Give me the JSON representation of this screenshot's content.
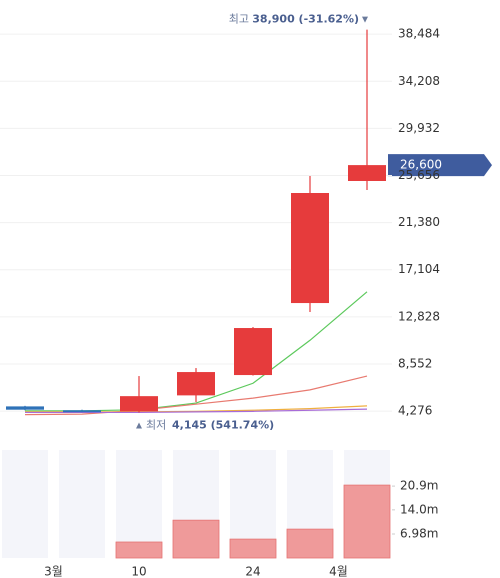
{
  "chart_data": {
    "type": "candlestick",
    "categories": [
      null,
      null,
      "10",
      null,
      "24",
      null,
      null
    ],
    "month_labels": [
      "3월",
      "4월"
    ],
    "open": [
      4700,
      4350,
      4250,
      5700,
      7545,
      14080,
      25158
    ],
    "high": [
      4750,
      4400,
      7454,
      8180,
      11900,
      25611,
      38900
    ],
    "low": [
      4350,
      4180,
      4145,
      5090,
      7500,
      13264,
      24340
    ],
    "close": [
      4400,
      4200,
      5630,
      7817,
      11812,
      24068,
      26600
    ],
    "up_color": "#e63b3c",
    "down_color": "#2f72b8",
    "ylim": [
      1650,
      39770
    ],
    "yticks": [
      {
        "value": 4276,
        "label": "4,276"
      },
      {
        "value": 8552,
        "label": "8,552"
      },
      {
        "value": 12828,
        "label": "12,828"
      },
      {
        "value": 17104,
        "label": "17,104"
      },
      {
        "value": 21380,
        "label": "21,380"
      },
      {
        "value": 25656,
        "label": "25,656"
      },
      {
        "value": 29932,
        "label": "29,932"
      },
      {
        "value": 34208,
        "label": "34,208"
      },
      {
        "value": 38484,
        "label": "38,484"
      }
    ],
    "grid": true,
    "moving_averages": [
      {
        "color": "#5cc95c",
        "values": [
          4300,
          4300,
          4400,
          5000,
          6800,
          10700,
          15100
        ]
      },
      {
        "color": "#e87a70",
        "values": [
          3950,
          4000,
          4350,
          4900,
          5450,
          6200,
          7450
        ]
      },
      {
        "color": "#f0b040",
        "values": [
          4200,
          4200,
          4200,
          4250,
          4350,
          4500,
          4750
        ]
      },
      {
        "color": "#a86cd8",
        "values": [
          4150,
          4150,
          4150,
          4200,
          4250,
          4350,
          4450
        ]
      }
    ],
    "high_annotation": {
      "label": "최고",
      "text": "38,900 (-31.62%)"
    },
    "low_annotation": {
      "label": "최저",
      "text": "4,145 (541.74%)"
    },
    "last_price": {
      "value": 26600,
      "label": "26,600"
    },
    "volume": {
      "type": "bar",
      "values": [
        0,
        0,
        4.65,
        11.0,
        5.5,
        8.4,
        21.2
      ],
      "color": "#ef9a9a",
      "ylim": [
        0,
        31.4
      ],
      "yticks": [
        {
          "value": 6.98,
          "label": "6.98m"
        },
        {
          "value": 14.0,
          "label": "14.0m"
        },
        {
          "value": 20.9,
          "label": "20.9m"
        }
      ]
    }
  }
}
